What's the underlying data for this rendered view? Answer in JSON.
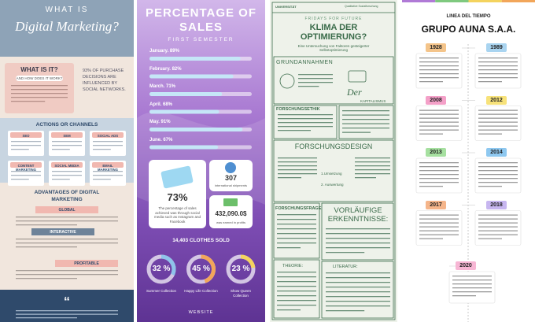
{
  "digital_marketing": {
    "title_top": "WHAT IS",
    "title_script": "Digital Marketing?",
    "what_is_it": "WHAT IS IT?",
    "how": "AND HOW DOES IT WORK?",
    "stat": "93% OF PURCHASE DECISIONS ARE INFLUENCED BY SOCIAL NETWORKS.",
    "channels_title": "ACTIONS OR CHANNELS",
    "channels": [
      "SEO",
      "SEM",
      "SOCIAL ADS",
      "CONTENT MARKETING",
      "SOCIAL MEDIA",
      "EMAIL MARKETING"
    ],
    "advantages_title": "ADVANTAGES OF DIGITAL MARKETING",
    "advantages": [
      "GLOBAL",
      "INTERACTIVE",
      "PROFITABLE"
    ]
  },
  "sales": {
    "title": "PERCENTAGE OF SALES",
    "subtitle": "FIRST SEMESTER",
    "months": [
      {
        "label": "January. 89%",
        "value": 89
      },
      {
        "label": "February. 82%",
        "value": 82
      },
      {
        "label": "March. 71%",
        "value": 71
      },
      {
        "label": "April. 68%",
        "value": 68
      },
      {
        "label": "May. 91%",
        "value": 91
      },
      {
        "label": "June. 67%",
        "value": 67
      }
    ],
    "share": "73%",
    "share_text": "The percentage of sales achieved was through social media such as Instagram and Facebook",
    "shipments": "307",
    "shipments_text": "international shipments",
    "profit": "432,090.0$",
    "profit_text": "was earned in profits",
    "clothes": "14,403 CLOTHES SOLD",
    "collections": [
      {
        "value": 32,
        "label": "32 %",
        "name": "Summer Collection",
        "color": "#8fc3ea"
      },
      {
        "value": 45,
        "label": "45 %",
        "name": "Happy Life Collection",
        "color": "#f2a65a"
      },
      {
        "value": 23,
        "label": "23 %",
        "name": "Show Queen Collection",
        "color": "#f4d35e"
      }
    ],
    "website": "WEBSITE"
  },
  "klima": {
    "header_left": "UNIVERSITÄT",
    "header_right": "Qualitative Sozialforschung",
    "kicker": "FRIDAYS FOR FUTURE",
    "title": "KLIMA DER OPTIMIERUNG?",
    "subtitle": "Eine Untersuchung von Faktoren gesteigerter Selbstoptimierung",
    "grundannahmen": "GRUNDANNAHMEN",
    "der": "Der",
    "kapitalismus": "KAPITALISMUS",
    "ethik": "FORSCHUNGSETHIK",
    "design": "FORSCHUNGSDESIGN",
    "step1": "1.Umsetzung",
    "step2": "2. Auswertung",
    "frage": "FORSCHUNGSFRAGE",
    "erkenntnisse": "VORLÄUFIGE ERKENNTNISSE:",
    "theorie": "THEORIE:",
    "literatur": "LITERATUR:"
  },
  "timeline": {
    "title": "LINEA DEL TIEMPO",
    "company": "GRUPO AUNA S.A.A.",
    "events": [
      {
        "year": "1928",
        "color": "#f4c48a"
      },
      {
        "year": "1989",
        "color": "#a9d4f0"
      },
      {
        "year": "2008",
        "color": "#f4a0c8"
      },
      {
        "year": "2012",
        "color": "#f7e27a"
      },
      {
        "year": "2013",
        "color": "#a6e0a0"
      },
      {
        "year": "2014",
        "color": "#8ec8f0"
      },
      {
        "year": "2017",
        "color": "#f5b58a"
      },
      {
        "year": "2018",
        "color": "#c7b6f0"
      },
      {
        "year": "2020",
        "color": "#f7b6d4"
      }
    ]
  }
}
